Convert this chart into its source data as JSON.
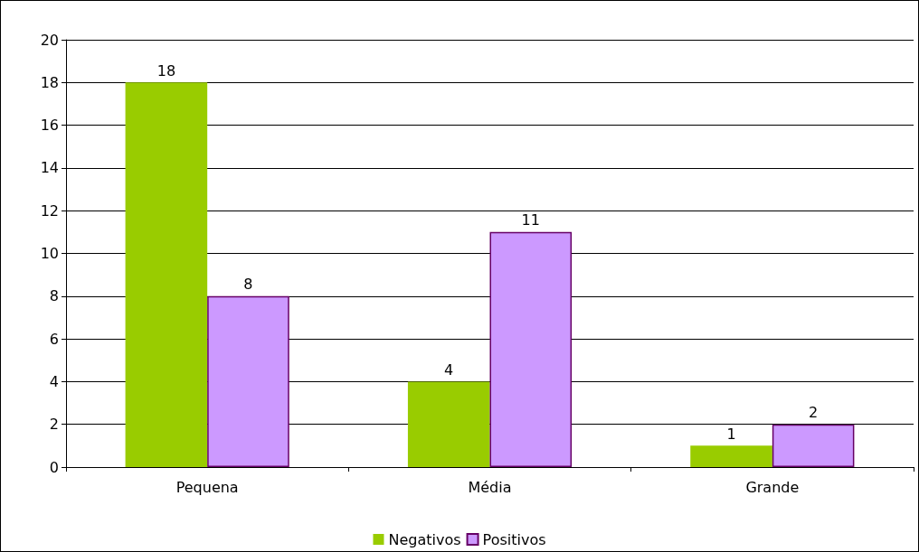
{
  "chart_data": {
    "type": "bar",
    "categories": [
      "Pequena",
      "Média",
      "Grande"
    ],
    "series": [
      {
        "name": "Negativos",
        "color": "#99cc00",
        "values": [
          18,
          4,
          1
        ]
      },
      {
        "name": "Positivos",
        "color": "#cc99ff",
        "values": [
          8,
          11,
          2
        ]
      }
    ],
    "ylim": [
      0,
      20
    ],
    "yticks": [
      0,
      2,
      4,
      6,
      8,
      10,
      12,
      14,
      16,
      18,
      20
    ],
    "grid": "y",
    "legend": "bottom",
    "data_labels": true
  }
}
